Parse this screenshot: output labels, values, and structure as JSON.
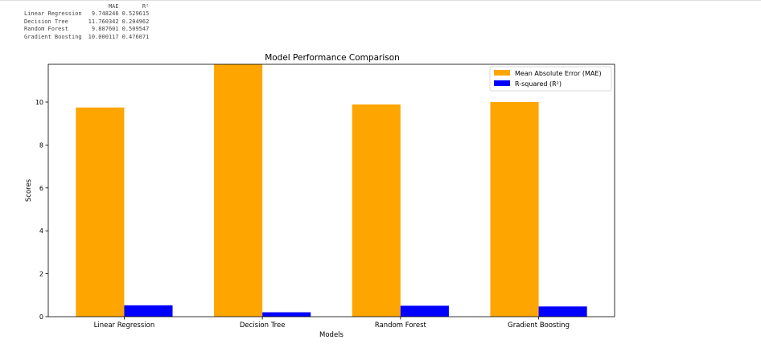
{
  "dataframe": {
    "columns": [
      "MAE",
      "R²"
    ],
    "rows": [
      {
        "index": "Linear Regression",
        "mae": "9.748246",
        "r2": "0.529615"
      },
      {
        "index": "Decision Tree",
        "mae": "11.760342",
        "r2": "0.204962"
      },
      {
        "index": "Random Forest",
        "mae": "9.887601",
        "r2": "0.509547"
      },
      {
        "index": "Gradient Boosting",
        "mae": "10.000117",
        "r2": "0.476071"
      }
    ]
  },
  "chart_data": {
    "type": "bar",
    "title": "Model Performance Comparison",
    "xlabel": "Models",
    "ylabel": "Scores",
    "categories": [
      "Linear Regression",
      "Decision Tree",
      "Random Forest",
      "Gradient Boosting"
    ],
    "series": [
      {
        "name": "Mean Absolute Error (MAE)",
        "color": "#ffa500",
        "values": [
          9.748246,
          11.760342,
          9.887601,
          10.000117
        ]
      },
      {
        "name": "R-squared (R²)",
        "color": "#0000ff",
        "values": [
          0.529615,
          0.204962,
          0.509547,
          0.476071
        ]
      }
    ],
    "ylim": [
      0,
      11.76
    ],
    "yticks": [
      0,
      2,
      4,
      6,
      8,
      10
    ],
    "grid": false,
    "legend": "top-right"
  }
}
